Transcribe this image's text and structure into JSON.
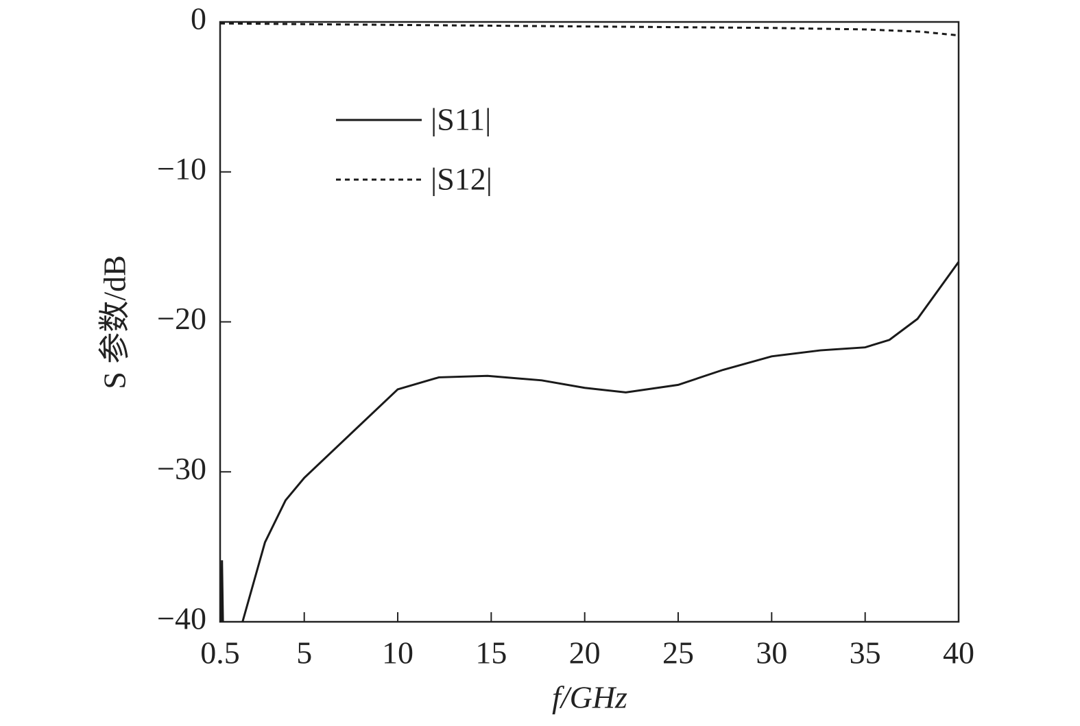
{
  "chart_data": {
    "type": "line",
    "xlabel": "f/GHz",
    "ylabel": "S 参数/dB",
    "xlim": [
      0.5,
      40
    ],
    "xticks": [
      0.5,
      5,
      10,
      15,
      20,
      25,
      30,
      35,
      40
    ],
    "ylim": [
      -40,
      0
    ],
    "yticks": [
      0,
      {
        "value": -10,
        "label": "−10"
      },
      {
        "value": -20,
        "label": "−20"
      },
      {
        "value": -30,
        "label": "−30"
      },
      {
        "value": -40,
        "label": "−40"
      }
    ],
    "legend": "upper left",
    "series": [
      {
        "name": "|S11|",
        "color": "#1a1a1a",
        "dash": "solid",
        "x": [
          0.55,
          0.6,
          0.65,
          null,
          1.7,
          2.9,
          4.0,
          5,
          10,
          12.2,
          14.8,
          17.7,
          20,
          22.2,
          25,
          27.4,
          30,
          32.6,
          35,
          36.3,
          37.8,
          40
        ],
        "values": [
          -40,
          -35.9,
          -40,
          null,
          -40,
          -34.7,
          -31.9,
          -30.4,
          -24.5,
          -23.7,
          -23.6,
          -23.9,
          -24.4,
          -24.7,
          -24.2,
          -23.2,
          -22.3,
          -21.9,
          -21.7,
          -21.2,
          -19.8,
          -16.0
        ]
      },
      {
        "name": "|S12|",
        "color": "#1a1a1a",
        "dash": "dashed",
        "x": [
          0.5,
          10,
          20,
          30,
          35,
          38,
          40
        ],
        "values": [
          -0.1,
          -0.2,
          -0.3,
          -0.4,
          -0.5,
          -0.65,
          -0.9
        ]
      }
    ]
  }
}
